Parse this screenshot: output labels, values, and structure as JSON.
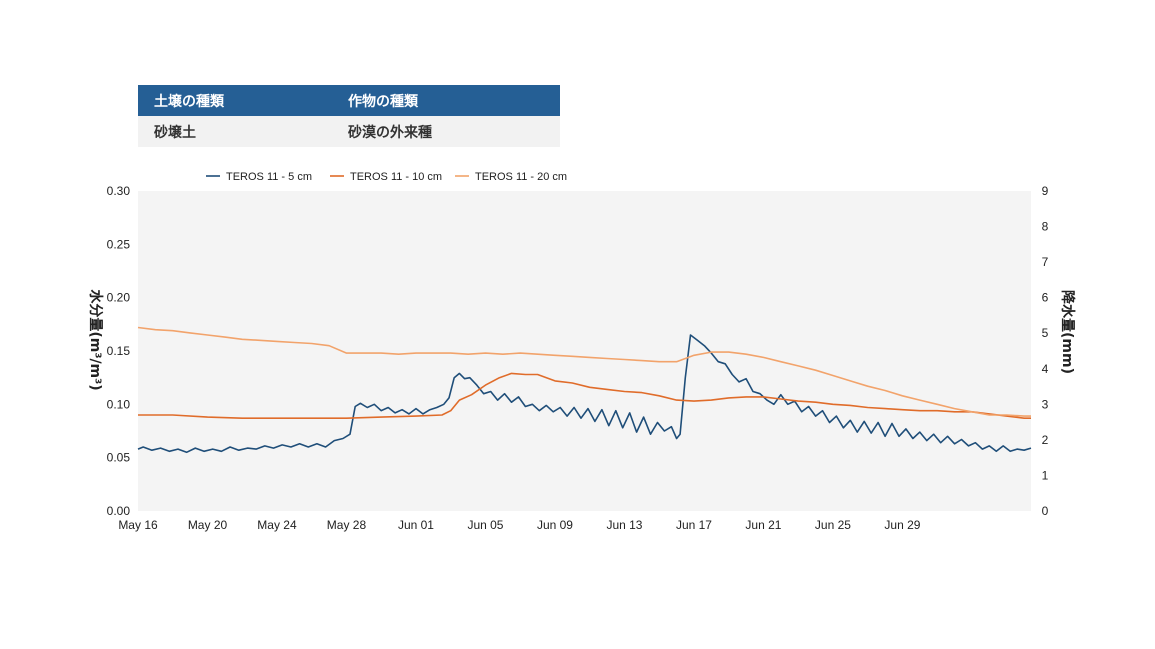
{
  "info_table": {
    "headers": [
      "土壌の種類",
      "作物の種類"
    ],
    "values": [
      "砂壌土",
      "砂漠の外来種"
    ]
  },
  "chart_data": {
    "type": "line",
    "x_start": "May 16",
    "x_end": "Jul 02",
    "x_tick_labels": [
      "May 16",
      "May 20",
      "May 24",
      "May 28",
      "Jun 01",
      "Jun 05",
      "Jun 09",
      "Jun 13",
      "Jun 17",
      "Jun 21",
      "Jun 25",
      "Jun 29"
    ],
    "ylabel_left": "水分量(m³/m³)",
    "ylabel_right": "降水量(mm)",
    "ylim_left": [
      0,
      0.3
    ],
    "ylim_right": [
      0,
      9
    ],
    "y_ticks_left": [
      "0.00",
      "0.05",
      "0.10",
      "0.15",
      "0.20",
      "0.25",
      "0.30"
    ],
    "y_ticks_right": [
      "0",
      "1",
      "2",
      "3",
      "4",
      "5",
      "6",
      "7",
      "8",
      "9"
    ],
    "legend_position": "top",
    "plot_background": "#f4f4f4",
    "series": [
      {
        "name": "TEROS 11 - 5 cm",
        "color": "#1f4e79",
        "points": [
          [
            0,
            0.058
          ],
          [
            0.3,
            0.06
          ],
          [
            0.8,
            0.057
          ],
          [
            1.3,
            0.059
          ],
          [
            1.8,
            0.056
          ],
          [
            2.3,
            0.058
          ],
          [
            2.8,
            0.055
          ],
          [
            3.3,
            0.059
          ],
          [
            3.8,
            0.056
          ],
          [
            4.3,
            0.058
          ],
          [
            4.8,
            0.056
          ],
          [
            5.3,
            0.06
          ],
          [
            5.8,
            0.057
          ],
          [
            6.3,
            0.059
          ],
          [
            6.8,
            0.058
          ],
          [
            7.3,
            0.061
          ],
          [
            7.8,
            0.059
          ],
          [
            8.3,
            0.062
          ],
          [
            8.8,
            0.06
          ],
          [
            9.3,
            0.063
          ],
          [
            9.8,
            0.06
          ],
          [
            10.3,
            0.063
          ],
          [
            10.8,
            0.06
          ],
          [
            11.3,
            0.066
          ],
          [
            11.8,
            0.068
          ],
          [
            12.2,
            0.072
          ],
          [
            12.5,
            0.098
          ],
          [
            12.8,
            0.101
          ],
          [
            13.2,
            0.097
          ],
          [
            13.6,
            0.1
          ],
          [
            14,
            0.094
          ],
          [
            14.4,
            0.097
          ],
          [
            14.8,
            0.092
          ],
          [
            15.2,
            0.095
          ],
          [
            15.6,
            0.091
          ],
          [
            16,
            0.096
          ],
          [
            16.4,
            0.091
          ],
          [
            16.8,
            0.095
          ],
          [
            17.2,
            0.097
          ],
          [
            17.6,
            0.1
          ],
          [
            17.9,
            0.106
          ],
          [
            18.2,
            0.125
          ],
          [
            18.5,
            0.129
          ],
          [
            18.8,
            0.124
          ],
          [
            19.1,
            0.125
          ],
          [
            19.5,
            0.118
          ],
          [
            19.9,
            0.11
          ],
          [
            20.3,
            0.112
          ],
          [
            20.7,
            0.104
          ],
          [
            21.1,
            0.11
          ],
          [
            21.5,
            0.102
          ],
          [
            21.9,
            0.107
          ],
          [
            22.3,
            0.098
          ],
          [
            22.7,
            0.1
          ],
          [
            23.1,
            0.094
          ],
          [
            23.5,
            0.099
          ],
          [
            23.9,
            0.093
          ],
          [
            24.3,
            0.097
          ],
          [
            24.7,
            0.089
          ],
          [
            25.1,
            0.097
          ],
          [
            25.5,
            0.087
          ],
          [
            25.9,
            0.096
          ],
          [
            26.3,
            0.084
          ],
          [
            26.7,
            0.095
          ],
          [
            27.1,
            0.08
          ],
          [
            27.5,
            0.094
          ],
          [
            27.9,
            0.078
          ],
          [
            28.3,
            0.092
          ],
          [
            28.7,
            0.074
          ],
          [
            29.1,
            0.088
          ],
          [
            29.5,
            0.072
          ],
          [
            29.9,
            0.083
          ],
          [
            30.3,
            0.075
          ],
          [
            30.7,
            0.079
          ],
          [
            31,
            0.068
          ],
          [
            31.2,
            0.072
          ],
          [
            31.5,
            0.125
          ],
          [
            31.8,
            0.165
          ],
          [
            32.2,
            0.16
          ],
          [
            32.6,
            0.155
          ],
          [
            33,
            0.148
          ],
          [
            33.4,
            0.14
          ],
          [
            33.8,
            0.138
          ],
          [
            34.2,
            0.128
          ],
          [
            34.6,
            0.121
          ],
          [
            35,
            0.124
          ],
          [
            35.4,
            0.112
          ],
          [
            35.8,
            0.11
          ],
          [
            36.2,
            0.104
          ],
          [
            36.6,
            0.1
          ],
          [
            37,
            0.109
          ],
          [
            37.4,
            0.1
          ],
          [
            37.8,
            0.103
          ],
          [
            38.2,
            0.093
          ],
          [
            38.6,
            0.098
          ],
          [
            39,
            0.089
          ],
          [
            39.4,
            0.094
          ],
          [
            39.8,
            0.083
          ],
          [
            40.2,
            0.089
          ],
          [
            40.6,
            0.078
          ],
          [
            41,
            0.085
          ],
          [
            41.4,
            0.074
          ],
          [
            41.8,
            0.084
          ],
          [
            42.2,
            0.073
          ],
          [
            42.6,
            0.083
          ],
          [
            43,
            0.07
          ],
          [
            43.4,
            0.082
          ],
          [
            43.8,
            0.07
          ],
          [
            44.2,
            0.077
          ],
          [
            44.6,
            0.068
          ],
          [
            45,
            0.074
          ],
          [
            45.4,
            0.066
          ],
          [
            45.8,
            0.072
          ],
          [
            46.2,
            0.064
          ],
          [
            46.6,
            0.07
          ],
          [
            47,
            0.063
          ],
          [
            47.4,
            0.067
          ],
          [
            47.8,
            0.061
          ],
          [
            48.2,
            0.064
          ],
          [
            48.6,
            0.058
          ],
          [
            49,
            0.061
          ],
          [
            49.4,
            0.056
          ],
          [
            49.8,
            0.061
          ],
          [
            50.2,
            0.056
          ],
          [
            50.6,
            0.058
          ],
          [
            51,
            0.057
          ],
          [
            51.4,
            0.059
          ]
        ]
      },
      {
        "name": "TEROS 11 - 10 cm",
        "color": "#e06c2a",
        "points": [
          [
            0,
            0.09
          ],
          [
            2,
            0.09
          ],
          [
            4,
            0.088
          ],
          [
            6,
            0.087
          ],
          [
            8,
            0.087
          ],
          [
            10,
            0.087
          ],
          [
            12,
            0.087
          ],
          [
            14,
            0.088
          ],
          [
            16,
            0.089
          ],
          [
            17.5,
            0.09
          ],
          [
            18,
            0.094
          ],
          [
            18.5,
            0.104
          ],
          [
            19.2,
            0.109
          ],
          [
            20,
            0.118
          ],
          [
            20.8,
            0.125
          ],
          [
            21.5,
            0.129
          ],
          [
            22.3,
            0.128
          ],
          [
            23,
            0.128
          ],
          [
            24,
            0.122
          ],
          [
            25,
            0.12
          ],
          [
            26,
            0.116
          ],
          [
            27,
            0.114
          ],
          [
            28,
            0.112
          ],
          [
            29,
            0.111
          ],
          [
            30,
            0.108
          ],
          [
            31,
            0.104
          ],
          [
            32,
            0.103
          ],
          [
            33,
            0.104
          ],
          [
            34,
            0.106
          ],
          [
            35,
            0.107
          ],
          [
            36,
            0.107
          ],
          [
            37,
            0.105
          ],
          [
            38,
            0.103
          ],
          [
            39,
            0.102
          ],
          [
            40,
            0.1
          ],
          [
            41,
            0.099
          ],
          [
            42,
            0.097
          ],
          [
            43,
            0.096
          ],
          [
            44,
            0.095
          ],
          [
            45,
            0.094
          ],
          [
            46,
            0.094
          ],
          [
            47,
            0.093
          ],
          [
            48,
            0.093
          ],
          [
            49,
            0.091
          ],
          [
            50,
            0.089
          ],
          [
            51,
            0.087
          ],
          [
            51.4,
            0.087
          ]
        ]
      },
      {
        "name": "TEROS 11 - 20 cm",
        "color": "#f2a36b",
        "points": [
          [
            0,
            0.172
          ],
          [
            1,
            0.17
          ],
          [
            2,
            0.169
          ],
          [
            3,
            0.167
          ],
          [
            4,
            0.165
          ],
          [
            5,
            0.163
          ],
          [
            6,
            0.161
          ],
          [
            7,
            0.16
          ],
          [
            8,
            0.159
          ],
          [
            9,
            0.158
          ],
          [
            10,
            0.157
          ],
          [
            11,
            0.155
          ],
          [
            12,
            0.148
          ],
          [
            13,
            0.148
          ],
          [
            14,
            0.148
          ],
          [
            15,
            0.147
          ],
          [
            16,
            0.148
          ],
          [
            17,
            0.148
          ],
          [
            18,
            0.148
          ],
          [
            19,
            0.147
          ],
          [
            20,
            0.148
          ],
          [
            21,
            0.147
          ],
          [
            22,
            0.148
          ],
          [
            23,
            0.147
          ],
          [
            24,
            0.146
          ],
          [
            25,
            0.145
          ],
          [
            26,
            0.144
          ],
          [
            27,
            0.143
          ],
          [
            28,
            0.142
          ],
          [
            29,
            0.141
          ],
          [
            30,
            0.14
          ],
          [
            31,
            0.14
          ],
          [
            32,
            0.146
          ],
          [
            33,
            0.149
          ],
          [
            34,
            0.149
          ],
          [
            35,
            0.147
          ],
          [
            36,
            0.144
          ],
          [
            37,
            0.14
          ],
          [
            38,
            0.136
          ],
          [
            39,
            0.132
          ],
          [
            40,
            0.127
          ],
          [
            41,
            0.122
          ],
          [
            42,
            0.117
          ],
          [
            43,
            0.113
          ],
          [
            44,
            0.108
          ],
          [
            45,
            0.104
          ],
          [
            46,
            0.1
          ],
          [
            47,
            0.096
          ],
          [
            48,
            0.093
          ],
          [
            49,
            0.09
          ],
          [
            50,
            0.09
          ],
          [
            51,
            0.089
          ],
          [
            51.4,
            0.089
          ]
        ]
      }
    ]
  }
}
